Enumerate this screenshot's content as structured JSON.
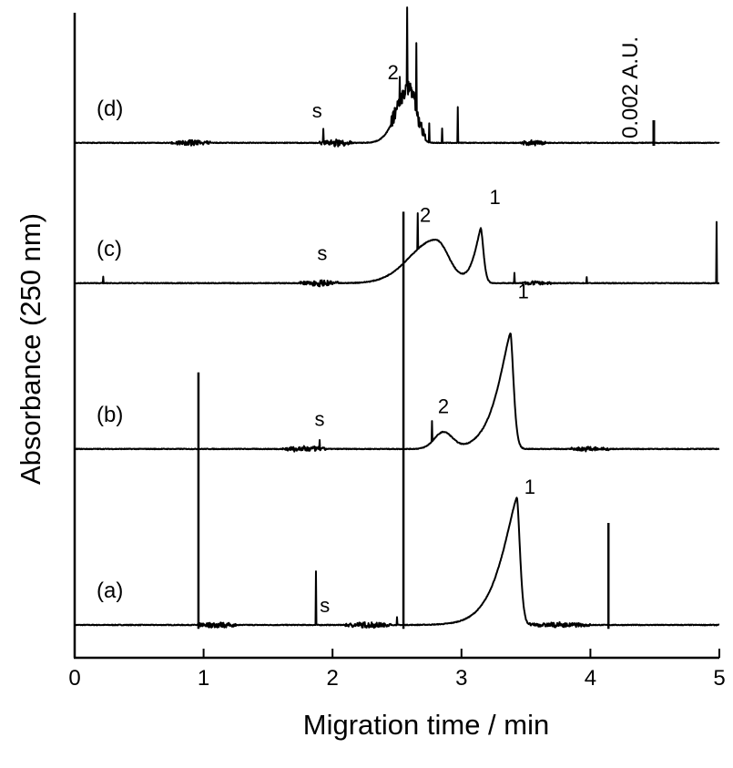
{
  "chart_data": {
    "type": "line",
    "xlabel": "Migration time / min",
    "ylabel": "Absorbance (250 nm)",
    "xlim": [
      0,
      5
    ],
    "xticks": [
      "0",
      "1",
      "2",
      "3",
      "4",
      "5"
    ],
    "grid": false,
    "scale_bar": {
      "label": "0.002 A.U.",
      "value": 0.002
    },
    "series": [
      {
        "name": "(a)",
        "offset": 0.0,
        "noise_regions": [
          [
            0.95,
            1.25,
            0.00025
          ],
          [
            2.1,
            2.45,
            0.00025
          ],
          [
            3.5,
            4.0,
            0.0002
          ]
        ],
        "peaks": [
          {
            "x": 3.43,
            "height": 0.01,
            "w_left": 0.17,
            "w_right": 0.035,
            "shape": "tailed"
          }
        ],
        "spikes": [
          [
            1.87,
            0.0042
          ],
          [
            2.5,
            0.0006
          ]
        ],
        "annotations": [
          {
            "text": "s",
            "x": 1.94,
            "y": 0.001
          },
          {
            "text": "1",
            "x": 3.53,
            "y": 0.0103
          }
        ]
      },
      {
        "name": "(b)",
        "offset": 0.0138,
        "noise_regions": [
          [
            1.6,
            1.95,
            0.00025
          ],
          [
            3.85,
            4.15,
            0.0002
          ]
        ],
        "peaks": [
          {
            "x": 2.86,
            "height": 0.0013,
            "w_left": 0.07,
            "w_right": 0.07,
            "shape": "gauss"
          },
          {
            "x": 3.38,
            "height": 0.0091,
            "w_left": 0.14,
            "w_right": 0.035,
            "shape": "tailed"
          }
        ],
        "spikes": [
          [
            2.77,
            0.0016
          ],
          [
            1.9,
            0.0007
          ]
        ],
        "annotations": [
          {
            "text": "s",
            "x": 1.9,
            "y": 0.0018
          },
          {
            "text": "2",
            "x": 2.86,
            "y": 0.0028
          },
          {
            "text": "1",
            "x": 3.48,
            "y": 0.0118
          }
        ]
      },
      {
        "name": "(c)",
        "offset": 0.0268,
        "noise_regions": [
          [
            1.75,
            2.05,
            0.00025
          ],
          [
            3.45,
            3.7,
            0.00015
          ]
        ],
        "peaks": [
          {
            "x": 2.8,
            "height": 0.0034,
            "w_left": 0.2,
            "w_right": 0.1,
            "shape": "gauss"
          },
          {
            "x": 3.15,
            "height": 0.0043,
            "w_left": 0.07,
            "w_right": 0.03,
            "shape": "tailed"
          }
        ],
        "spikes": [
          [
            2.66,
            0.0028
          ],
          [
            0.22,
            0.0005
          ],
          [
            3.41,
            0.0008
          ],
          [
            3.97,
            0.0005
          ],
          [
            4.98,
            0.0048
          ]
        ],
        "annotations": [
          {
            "text": "s",
            "x": 1.92,
            "y": 0.0018
          },
          {
            "text": "2",
            "x": 2.72,
            "y": 0.0048
          },
          {
            "text": "1",
            "x": 3.26,
            "y": 0.0062
          }
        ]
      },
      {
        "name": "(d)",
        "offset": 0.0378,
        "noise_regions": [
          [
            0.75,
            1.05,
            0.00025
          ],
          [
            1.9,
            2.15,
            0.0003
          ],
          [
            3.45,
            3.65,
            0.00025
          ]
        ],
        "peaks": [
          {
            "x": 2.6,
            "height": 0.0042,
            "w_left": 0.1,
            "w_right": 0.05,
            "shape": "gauss"
          }
        ],
        "spikes": [
          [
            2.58,
            0.0066
          ],
          [
            2.65,
            0.0055
          ],
          [
            2.52,
            0.0025
          ],
          [
            2.75,
            0.0015
          ],
          [
            2.85,
            0.0011
          ],
          [
            2.97,
            0.0028
          ],
          [
            1.93,
            0.0011
          ]
        ],
        "annotations": [
          {
            "text": "s",
            "x": 1.88,
            "y": 0.002
          },
          {
            "text": "2",
            "x": 2.47,
            "y": 0.005
          }
        ]
      }
    ],
    "standalone_spikes": [
      {
        "x": 0.96,
        "from": -0.0003,
        "to": 0.0198
      },
      {
        "x": 2.55,
        "from": -0.0003,
        "to": 0.0324
      },
      {
        "x": 4.14,
        "from": -0.0003,
        "to": 0.008
      }
    ]
  }
}
